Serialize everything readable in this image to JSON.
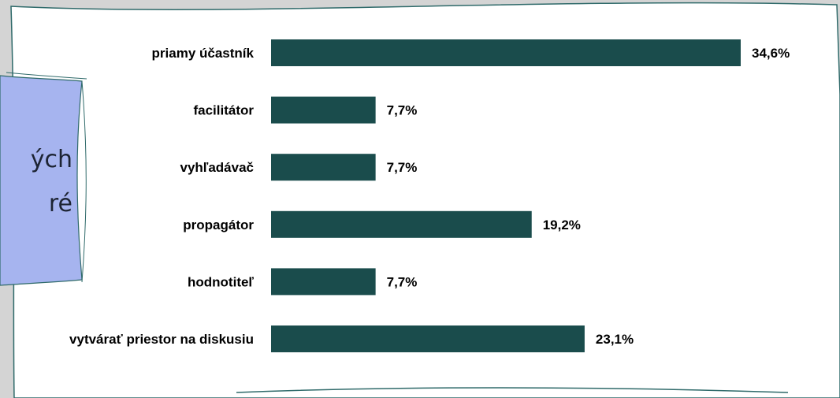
{
  "side_note": {
    "line1": "ých",
    "line2": "ré"
  },
  "colors": {
    "bar": "#1a4c4c",
    "page_bg": "#d4d4d4",
    "card_bg": "#ffffff",
    "card_border": "#2f6a6a",
    "note_fill": "#a6b4ef"
  },
  "chart_data": {
    "type": "bar",
    "orientation": "horizontal",
    "categories": [
      "priamy účastník",
      "facilitátor",
      "vyhľadávač",
      "propagátor",
      "hodnotiteľ",
      "vytvárať priestor na diskusiu"
    ],
    "values": [
      34.6,
      7.7,
      7.7,
      19.2,
      7.7,
      23.1
    ],
    "value_labels": [
      "34,6%",
      "7,7%",
      "7,7%",
      "19,2%",
      "7,7%",
      "23,1%"
    ],
    "unit": "%",
    "xlim": [
      0,
      34.6
    ],
    "grid": false,
    "legend": "none"
  }
}
